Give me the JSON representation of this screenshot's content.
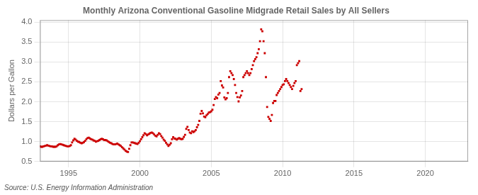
{
  "chart_data": {
    "type": "scatter",
    "title": "Monthly Arizona Conventional Gasoline Midgrade Retail Sales by All Sellers",
    "ylabel": "Dollars per Gallon",
    "annotations": [
      "Source: U.S. Energy Information Administration"
    ],
    "color": "#cc0000",
    "marker": "square",
    "grid": true,
    "xlim": [
      1993.0,
      2023.0
    ],
    "ylim": [
      0.5,
      4.05
    ],
    "xticks": [
      1995,
      2000,
      2005,
      2010,
      2015,
      2020
    ],
    "yticks": [
      0.5,
      {
        "value": 1.0,
        "label": "1.0"
      },
      1.5,
      {
        "value": 2.0,
        "label": "2.0"
      },
      2.5,
      {
        "value": 3.0,
        "label": "3.0"
      },
      3.5,
      {
        "value": 4.0,
        "label": "4.0"
      }
    ],
    "x": [
      1993.0,
      1993.083,
      1993.167,
      1993.25,
      1993.333,
      1993.417,
      1993.5,
      1993.583,
      1993.667,
      1993.75,
      1993.833,
      1993.917,
      1994.0,
      1994.083,
      1994.167,
      1994.25,
      1994.333,
      1994.417,
      1994.5,
      1994.583,
      1994.667,
      1994.75,
      1994.833,
      1994.917,
      1995.0,
      1995.083,
      1995.167,
      1995.25,
      1995.333,
      1995.417,
      1995.5,
      1995.583,
      1995.667,
      1995.75,
      1995.833,
      1995.917,
      1996.0,
      1996.083,
      1996.167,
      1996.25,
      1996.333,
      1996.417,
      1996.5,
      1996.583,
      1996.667,
      1996.75,
      1996.833,
      1996.917,
      1997.0,
      1997.083,
      1997.167,
      1997.25,
      1997.333,
      1997.417,
      1997.5,
      1997.583,
      1997.667,
      1997.75,
      1997.833,
      1997.917,
      1998.0,
      1998.083,
      1998.167,
      1998.25,
      1998.333,
      1998.417,
      1998.5,
      1998.583,
      1998.667,
      1998.75,
      1998.833,
      1998.917,
      1999.0,
      1999.083,
      1999.167,
      1999.25,
      1999.333,
      1999.417,
      1999.5,
      1999.583,
      1999.667,
      1999.75,
      1999.833,
      1999.917,
      2000.0,
      2000.083,
      2000.167,
      2000.25,
      2000.333,
      2000.417,
      2000.5,
      2000.583,
      2000.667,
      2000.75,
      2000.833,
      2000.917,
      2001.0,
      2001.083,
      2001.167,
      2001.25,
      2001.333,
      2001.417,
      2001.5,
      2001.583,
      2001.667,
      2001.75,
      2001.833,
      2001.917,
      2002.0,
      2002.083,
      2002.167,
      2002.25,
      2002.333,
      2002.417,
      2002.5,
      2002.583,
      2002.667,
      2002.75,
      2002.833,
      2002.917,
      2003.0,
      2003.083,
      2003.167,
      2003.25,
      2003.333,
      2003.417,
      2003.5,
      2003.583,
      2003.667,
      2003.75,
      2003.833,
      2003.917,
      2004.0,
      2004.083,
      2004.167,
      2004.25,
      2004.333,
      2004.417,
      2004.5,
      2004.583,
      2004.667,
      2004.75,
      2004.833,
      2004.917,
      2005.0,
      2005.083,
      2005.167,
      2005.25,
      2005.333,
      2005.417,
      2005.5,
      2005.583,
      2005.667,
      2005.75,
      2005.833,
      2005.917,
      2006.0,
      2006.083,
      2006.167,
      2006.25,
      2006.333,
      2006.417,
      2006.5,
      2006.583,
      2006.667,
      2006.75,
      2006.833,
      2006.917,
      2007.0,
      2007.083,
      2007.167,
      2007.25,
      2007.333,
      2007.417,
      2007.5,
      2007.583,
      2007.667,
      2007.75,
      2007.833,
      2007.917,
      2008.0,
      2008.083,
      2008.167,
      2008.25,
      2008.333,
      2008.417,
      2008.5,
      2008.583,
      2008.667,
      2008.75,
      2008.833,
      2008.917,
      2009.0,
      2009.083,
      2009.167,
      2009.25,
      2009.333,
      2009.417,
      2009.5,
      2009.583,
      2009.667,
      2009.75,
      2009.833,
      2009.917,
      2010.0,
      2010.083,
      2010.167,
      2010.25,
      2010.333,
      2010.417,
      2010.5,
      2010.583,
      2010.667,
      2010.75,
      2010.833,
      2010.917,
      2011.0,
      2011.083,
      2011.167,
      2011.25,
      2011.333
    ],
    "values": [
      0.88,
      0.87,
      0.87,
      0.88,
      0.89,
      0.9,
      0.91,
      0.9,
      0.89,
      0.88,
      0.88,
      0.87,
      0.87,
      0.87,
      0.88,
      0.91,
      0.93,
      0.94,
      0.93,
      0.92,
      0.91,
      0.9,
      0.89,
      0.88,
      0.88,
      0.89,
      0.91,
      0.98,
      1.03,
      1.07,
      1.05,
      1.02,
      1.0,
      0.99,
      0.97,
      0.96,
      0.97,
      0.99,
      1.02,
      1.06,
      1.09,
      1.1,
      1.08,
      1.06,
      1.05,
      1.03,
      1.02,
      1.0,
      1.01,
      1.02,
      1.04,
      1.06,
      1.07,
      1.06,
      1.04,
      1.04,
      1.03,
      1.01,
      0.99,
      0.97,
      0.96,
      0.94,
      0.93,
      0.93,
      0.94,
      0.95,
      0.93,
      0.91,
      0.89,
      0.86,
      0.83,
      0.8,
      0.77,
      0.75,
      0.74,
      0.82,
      0.91,
      0.98,
      0.98,
      0.97,
      0.96,
      0.95,
      0.94,
      0.97,
      1.01,
      1.06,
      1.11,
      1.16,
      1.21,
      1.19,
      1.16,
      1.18,
      1.2,
      1.22,
      1.23,
      1.21,
      1.18,
      1.15,
      1.13,
      1.17,
      1.21,
      1.19,
      1.14,
      1.1,
      1.05,
      1.02,
      0.97,
      0.93,
      0.89,
      0.92,
      0.96,
      1.06,
      1.11,
      1.08,
      1.07,
      1.05,
      1.07,
      1.09,
      1.07,
      1.06,
      1.07,
      1.12,
      1.17,
      1.32,
      1.37,
      1.29,
      1.23,
      1.21,
      1.26,
      1.24,
      1.26,
      1.29,
      1.36,
      1.42,
      1.52,
      1.7,
      1.77,
      1.71,
      1.63,
      1.61,
      1.66,
      1.69,
      1.73,
      1.74,
      1.76,
      1.8,
      1.92,
      2.07,
      2.12,
      2.09,
      2.18,
      2.22,
      2.52,
      2.41,
      2.36,
      2.11,
      2.06,
      2.09,
      2.22,
      2.62,
      2.77,
      2.72,
      2.67,
      2.57,
      2.42,
      2.22,
      2.12,
      2.01,
      2.11,
      2.16,
      2.27,
      2.62,
      2.67,
      2.72,
      2.77,
      2.72,
      2.67,
      2.72,
      2.82,
      2.92,
      3.02,
      3.07,
      3.12,
      3.22,
      3.32,
      3.52,
      3.82,
      3.77,
      3.52,
      3.22,
      2.62,
      1.87,
      1.62,
      1.57,
      1.52,
      1.67,
      1.97,
      2.02,
      2.02,
      2.17,
      2.22,
      2.27,
      2.32,
      2.37,
      2.42,
      2.44,
      2.52,
      2.57,
      2.52,
      2.47,
      2.42,
      2.37,
      2.32,
      2.4,
      2.47,
      2.52,
      2.92,
      2.97,
      3.02,
      2.27,
      2.32
    ]
  }
}
